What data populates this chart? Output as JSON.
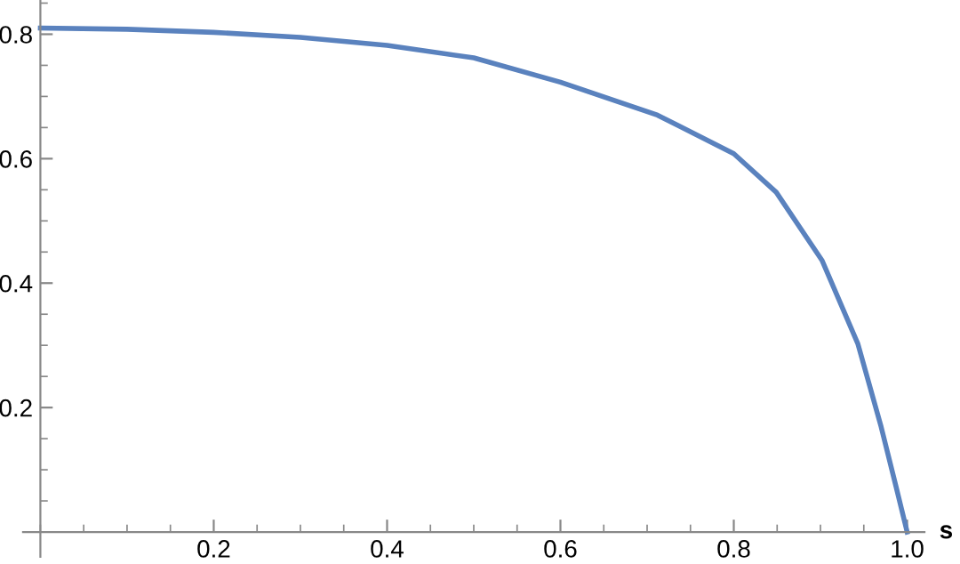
{
  "chart_data": {
    "type": "line",
    "xlabel": "s",
    "x": [
      0,
      0.1,
      0.2,
      0.3,
      0.4,
      0.5,
      0.6,
      0.712,
      0.8,
      0.849,
      0.902,
      0.943,
      0.97,
      0.987,
      1.0
    ],
    "series": [
      {
        "color": "#5a82be",
        "values": [
          0.81,
          0.808,
          0.803,
          0.795,
          0.782,
          0.762,
          0.723,
          0.67,
          0.608,
          0.546,
          0.436,
          0.303,
          0.169,
          0.074,
          0
        ]
      }
    ],
    "xlim": [
      -0.02,
      1.02
    ],
    "ylim": [
      -0.04,
      0.855
    ],
    "xticks": [
      0.2,
      0.4,
      0.6,
      0.8,
      {
        "value": 1.0,
        "label": "1.0"
      }
    ],
    "yticks": [
      0.2,
      0.4,
      0.6,
      0.8
    ],
    "grid": false,
    "marker": "none",
    "line_style": "solid"
  }
}
